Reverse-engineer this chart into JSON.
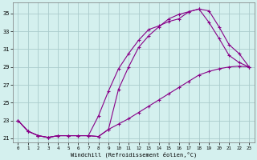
{
  "xlabel": "Windchill (Refroidissement éolien,°C)",
  "bg_color": "#d4f0ee",
  "grid_color": "#aacccc",
  "line_color": "#880088",
  "xlim": [
    -0.5,
    23.5
  ],
  "ylim": [
    20.5,
    36.2
  ],
  "xticks": [
    0,
    1,
    2,
    3,
    4,
    5,
    6,
    7,
    8,
    9,
    10,
    11,
    12,
    13,
    14,
    15,
    16,
    17,
    18,
    19,
    20,
    21,
    22,
    23
  ],
  "yticks": [
    21,
    23,
    25,
    27,
    29,
    31,
    33,
    35
  ],
  "line1_x": [
    0,
    1,
    2,
    3,
    4,
    5,
    6,
    7,
    8,
    9,
    10,
    11,
    12,
    13,
    14,
    15,
    16,
    17,
    18,
    19,
    20,
    21,
    22,
    23
  ],
  "line1_y": [
    23.0,
    21.8,
    21.3,
    21.1,
    21.3,
    21.3,
    21.3,
    21.3,
    21.2,
    22.0,
    26.5,
    29.0,
    31.2,
    32.5,
    33.5,
    34.4,
    34.9,
    35.2,
    35.5,
    35.3,
    33.5,
    31.5,
    30.5,
    29.0
  ],
  "line2_x": [
    0,
    1,
    2,
    3,
    4,
    5,
    6,
    7,
    8,
    9,
    10,
    11,
    12,
    13,
    14,
    15,
    16,
    17,
    18,
    19,
    20,
    21,
    22,
    23
  ],
  "line2_y": [
    23.0,
    21.8,
    21.3,
    21.1,
    21.3,
    21.3,
    21.3,
    21.3,
    23.5,
    26.3,
    28.8,
    30.5,
    32.0,
    33.2,
    33.6,
    34.1,
    34.4,
    35.2,
    35.5,
    34.0,
    32.2,
    30.3,
    29.5,
    29.0
  ],
  "line3_x": [
    0,
    1,
    2,
    3,
    4,
    5,
    6,
    7,
    8,
    9,
    10,
    11,
    12,
    13,
    14,
    15,
    16,
    17,
    18,
    19,
    20,
    21,
    22,
    23
  ],
  "line3_y": [
    23.0,
    21.8,
    21.3,
    21.1,
    21.3,
    21.3,
    21.3,
    21.3,
    21.2,
    22.0,
    22.6,
    23.2,
    23.9,
    24.6,
    25.3,
    26.0,
    26.7,
    27.4,
    28.1,
    28.5,
    28.8,
    29.0,
    29.1,
    29.0
  ],
  "marker": "+"
}
